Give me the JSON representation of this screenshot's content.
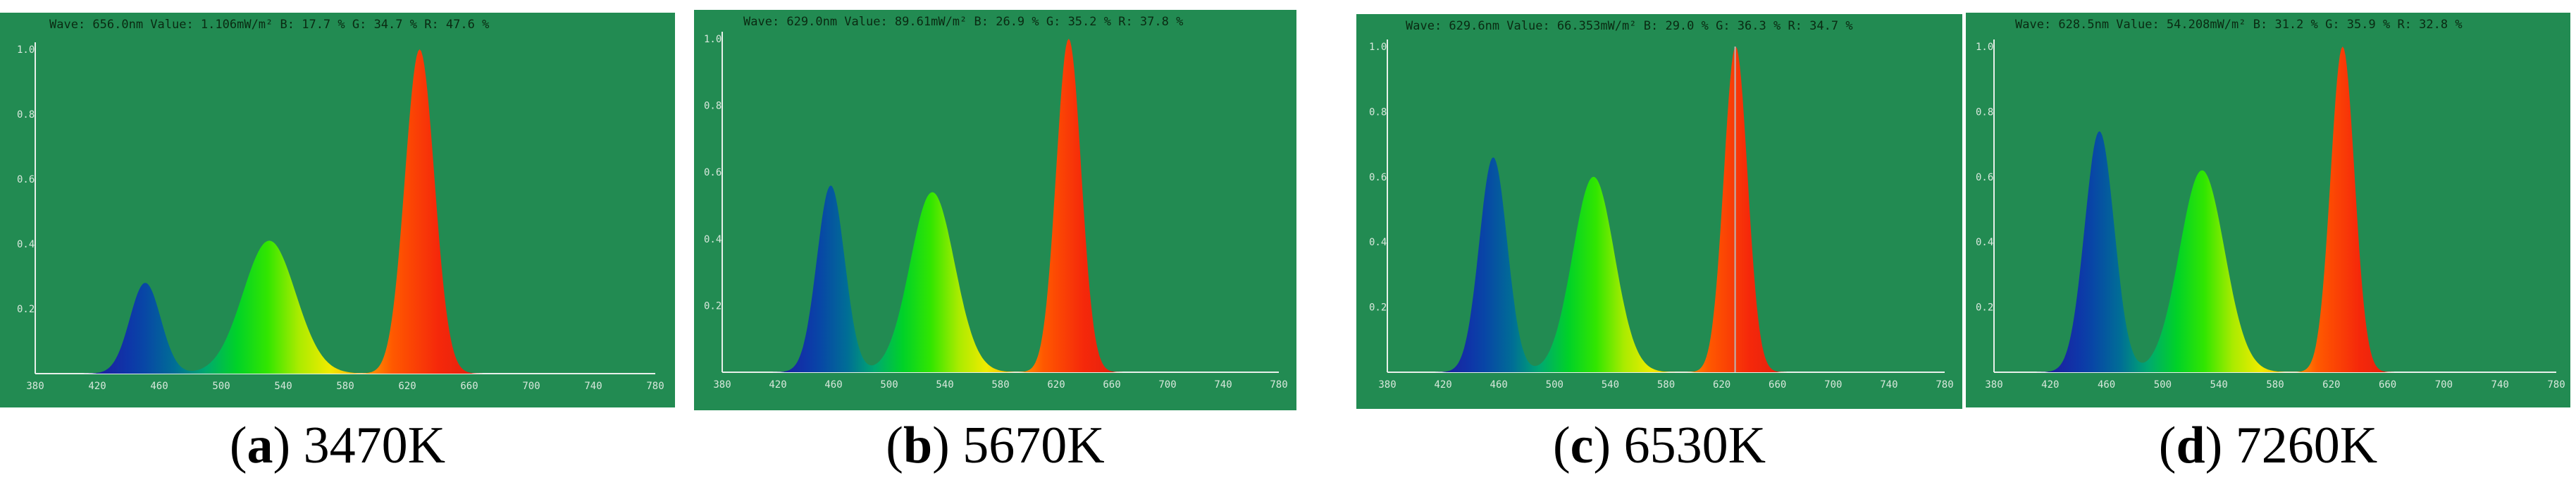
{
  "chart_data": [
    {
      "type": "area",
      "caption": {
        "letter": "a",
        "text": "3470K"
      },
      "header": "Wave: 656.0nm  Value: 1.106mW/m²  B: 17.7 %  G: 34.7 %  R: 47.6 %",
      "xlim": [
        380,
        780
      ],
      "ylim": [
        0,
        1.0
      ],
      "x_ticks": [
        "380",
        "420",
        "460",
        "500",
        "540",
        "580",
        "620",
        "660",
        "700",
        "740",
        "780"
      ],
      "y_ticks": [
        "1.0",
        "0.8",
        "0.6",
        "0.4",
        "0.2"
      ],
      "grid": false,
      "peaks": [
        {
          "center": 451,
          "height": 0.28,
          "sigma": 10
        },
        {
          "center": 531,
          "height": 0.41,
          "sigma": 17
        },
        {
          "center": 628,
          "height": 1.0,
          "sigma": 9.5
        }
      ]
    },
    {
      "type": "area",
      "caption": {
        "letter": "b",
        "text": "5670K"
      },
      "header": "Wave: 629.0nm  Value: 89.61mW/m²  B: 26.9 %  G: 35.2 %  R: 37.8 %",
      "xlim": [
        380,
        780
      ],
      "ylim": [
        0,
        1.0
      ],
      "x_ticks": [
        "380",
        "420",
        "460",
        "500",
        "540",
        "580",
        "620",
        "660",
        "700",
        "740",
        "780"
      ],
      "y_ticks": [
        "1.0",
        "0.8",
        "0.6",
        "0.4",
        "0.2"
      ],
      "grid": false,
      "peaks": [
        {
          "center": 458,
          "height": 0.56,
          "sigma": 10
        },
        {
          "center": 531,
          "height": 0.54,
          "sigma": 16
        },
        {
          "center": 629,
          "height": 1.0,
          "sigma": 9
        }
      ]
    },
    {
      "type": "area",
      "caption": {
        "letter": "c",
        "text": "6530K"
      },
      "header": "Wave: 629.6nm  Value: 66.353mW/m²  B: 29.0 %  G: 36.3 %  R: 34.7 %",
      "xlim": [
        380,
        780
      ],
      "ylim": [
        0,
        1.0
      ],
      "x_ticks": [
        "380",
        "420",
        "460",
        "500",
        "540",
        "580",
        "620",
        "660",
        "700",
        "740",
        "780"
      ],
      "y_ticks": [
        "1.0",
        "0.8",
        "0.6",
        "0.4",
        "0.2"
      ],
      "grid": false,
      "peaks": [
        {
          "center": 456,
          "height": 0.66,
          "sigma": 10
        },
        {
          "center": 528,
          "height": 0.6,
          "sigma": 15
        },
        {
          "center": 630,
          "height": 1.0,
          "sigma": 8.5
        }
      ],
      "cursor_x": 629.6
    },
    {
      "type": "area",
      "caption": {
        "letter": "d",
        "text": "7260K"
      },
      "header": "Wave: 628.5nm  Value: 54.208mW/m²  B: 31.2 %  G: 35.9 %  R: 32.8 %",
      "xlim": [
        380,
        780
      ],
      "ylim": [
        0,
        1.0
      ],
      "x_ticks": [
        "380",
        "420",
        "460",
        "500",
        "540",
        "580",
        "620",
        "660",
        "700",
        "740",
        "780"
      ],
      "y_ticks": [
        "1.0",
        "0.8",
        "0.6",
        "0.4",
        "0.2"
      ],
      "grid": false,
      "peaks": [
        {
          "center": 455,
          "height": 0.74,
          "sigma": 10.5
        },
        {
          "center": 528,
          "height": 0.62,
          "sigma": 16
        },
        {
          "center": 628,
          "height": 1.0,
          "sigma": 8.5
        }
      ]
    }
  ]
}
